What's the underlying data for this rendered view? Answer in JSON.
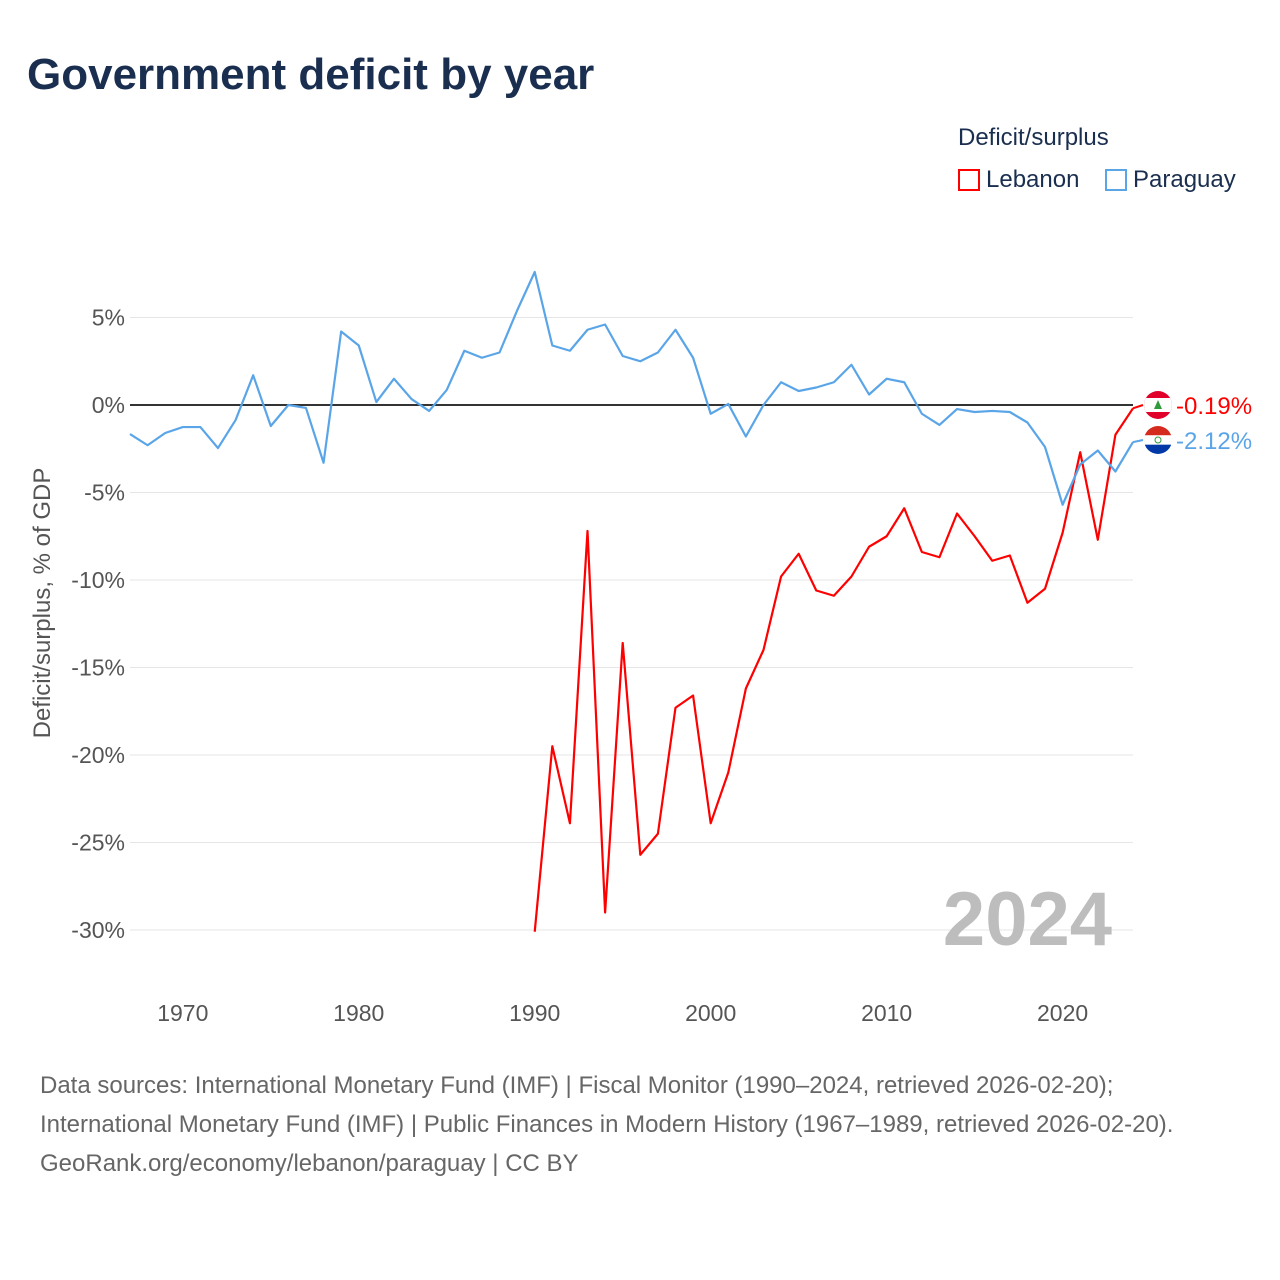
{
  "title": "Government deficit by year",
  "legend": {
    "title": "Deficit/surplus",
    "items": [
      {
        "label": "Lebanon",
        "color": "#ff0000"
      },
      {
        "label": "Paraguay",
        "color": "#5aa5e8"
      }
    ]
  },
  "footer": {
    "sources": "Data sources: International Monetary Fund (IMF) | Fiscal Monitor (1990–2024, retrieved 2026-02-20); International Monetary Fund (IMF) | Public Finances in Modern History (1967–1989, retrieved 2026-02-20).",
    "credit": "GeoRank.org/economy/lebanon/paraguay | CC BY"
  },
  "chart_data": {
    "type": "line",
    "title": "Government deficit by year",
    "xlabel": "",
    "ylabel": "Deficit/surplus, % of GDP",
    "xlim": [
      1967,
      2024
    ],
    "ylim": [
      -32,
      8
    ],
    "x_ticks": [
      1970,
      1980,
      1990,
      2000,
      2010,
      2020
    ],
    "y_ticks": [
      5,
      0,
      -5,
      -10,
      -15,
      -20,
      -25,
      -30
    ],
    "y_tick_labels": [
      "5%",
      "0%",
      "-5%",
      "-10%",
      "-15%",
      "-20%",
      "-25%",
      "-30%"
    ],
    "watermark_year": "2024",
    "series": [
      {
        "name": "Lebanon",
        "color": "#ff0000",
        "end_label": "-0.19%",
        "start_year": 1990,
        "values": [
          -30.1,
          -19.5,
          -23.9,
          -7.2,
          -29.0,
          -13.6,
          -25.7,
          -24.5,
          -17.3,
          -16.6,
          -23.9,
          -21.0,
          -16.2,
          -14.0,
          -9.8,
          -8.5,
          -10.6,
          -10.9,
          -9.8,
          -8.1,
          -7.5,
          -5.9,
          -8.4,
          -8.7,
          -6.2,
          -7.5,
          -8.9,
          -8.6,
          -11.3,
          -10.5,
          -7.3,
          -2.7,
          -7.7,
          -1.7,
          -0.19
        ]
      },
      {
        "name": "Paraguay",
        "color": "#5aa5e8",
        "end_label": "-2.12%",
        "start_year": 1967,
        "values": [
          -1.66,
          -2.3,
          -1.6,
          -1.26,
          -1.26,
          -2.46,
          -0.86,
          1.7,
          -1.2,
          0.0,
          -0.17,
          -3.3,
          4.2,
          3.4,
          0.17,
          1.5,
          0.34,
          -0.34,
          0.86,
          3.1,
          2.7,
          3.0,
          5.4,
          7.6,
          3.4,
          3.1,
          4.3,
          4.6,
          2.8,
          2.5,
          3.0,
          4.3,
          2.7,
          -0.5,
          0.06,
          -1.8,
          0.0,
          1.3,
          0.8,
          1.0,
          1.3,
          2.3,
          0.6,
          1.5,
          1.3,
          -0.5,
          -1.14,
          -0.23,
          -0.4,
          -0.34,
          -0.4,
          -1.0,
          -2.4,
          -5.7,
          -3.4,
          -2.6,
          -3.8,
          -2.12
        ]
      }
    ]
  }
}
